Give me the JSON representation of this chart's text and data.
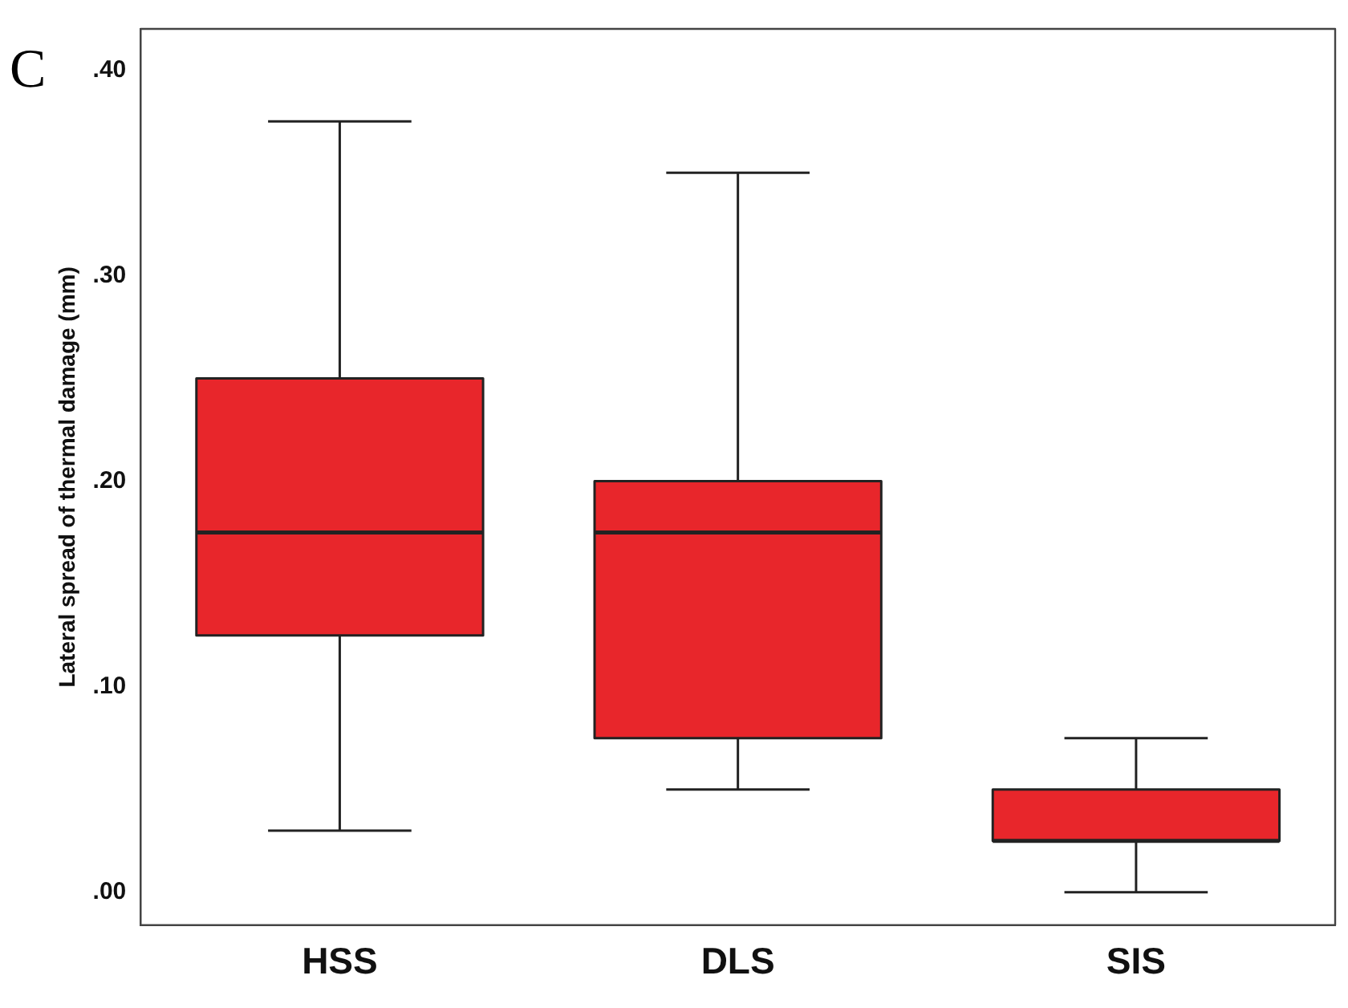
{
  "chart_data": {
    "type": "box",
    "ylabel": "Lateral spread of thermal damage (mm)",
    "annotations": [
      "C"
    ],
    "categories": [
      "HSS",
      "DLS",
      "SIS"
    ],
    "boxes": [
      {
        "low": 0.03,
        "q1": 0.125,
        "median": 0.175,
        "q3": 0.25,
        "high": 0.375
      },
      {
        "low": 0.05,
        "q1": 0.075,
        "median": 0.175,
        "q3": 0.2,
        "high": 0.35
      },
      {
        "low": 0,
        "q1": 0.025,
        "median": 0.025,
        "q3": 0.05,
        "high": 0.075
      }
    ],
    "color": "#e8262b",
    "ylim": [
      -0.016,
      0.42
    ],
    "yticks": [
      {
        "value": 0,
        "label": ".00"
      },
      {
        "value": 0.1,
        "label": ".10"
      },
      {
        "value": 0.2,
        "label": ".20"
      },
      {
        "value": 0.3,
        "label": ".30"
      },
      {
        "value": 0.4,
        "label": ".40"
      }
    ],
    "grid": false,
    "legend": false
  }
}
